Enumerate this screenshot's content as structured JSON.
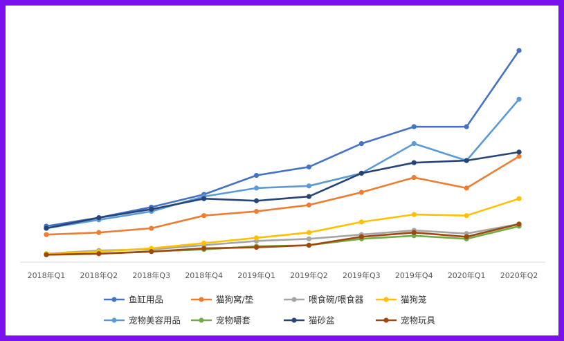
{
  "chart_data": {
    "type": "line",
    "title": "",
    "xlabel": "",
    "ylabel": "",
    "grid": false,
    "legend_position": "bottom",
    "categories": [
      "2018年Q1",
      "2018年Q2",
      "2018年Q3",
      "2018年Q4",
      "2019年Q1",
      "2019年Q2",
      "2019年Q3",
      "2019年Q4",
      "2020年Q1",
      "2020年Q2"
    ],
    "ylim": [
      0,
      100
    ],
    "series": [
      {
        "name": "鱼缸用品",
        "color": "#4472c4",
        "values": [
          17,
          21,
          26,
          32,
          41,
          45,
          56,
          64,
          64,
          100
        ]
      },
      {
        "name": "猫狗窝/垫",
        "color": "#ed7d31",
        "values": [
          13,
          14,
          16,
          22,
          24,
          27,
          33,
          40,
          35,
          50
        ]
      },
      {
        "name": "喂食碗/喂食器",
        "color": "#a5a5a5",
        "values": [
          4,
          5.5,
          6,
          8,
          10,
          11,
          13,
          15,
          13.5,
          18
        ]
      },
      {
        "name": "猫狗笼",
        "color": "#ffc000",
        "values": [
          4,
          5,
          6.5,
          9,
          11.5,
          14,
          19,
          22.5,
          22,
          30
        ]
      },
      {
        "name": "宠物美容用品",
        "color": "#5b9bd5",
        "values": [
          16,
          20,
          24,
          31,
          35,
          36,
          42,
          56,
          48,
          77
        ]
      },
      {
        "name": "宠物嚼套",
        "color": "#70ad47",
        "values": [
          3.5,
          4,
          5,
          6,
          7.5,
          8,
          11,
          12.5,
          11,
          17
        ]
      },
      {
        "name": "猫砂盆",
        "color": "#264478",
        "values": [
          16,
          21,
          25,
          30,
          29,
          31,
          42,
          47,
          48,
          52
        ]
      },
      {
        "name": "宠物玩具",
        "color": "#9e480e",
        "values": [
          3.5,
          4,
          5,
          6.5,
          7,
          8,
          12,
          14,
          12,
          18
        ]
      }
    ]
  }
}
